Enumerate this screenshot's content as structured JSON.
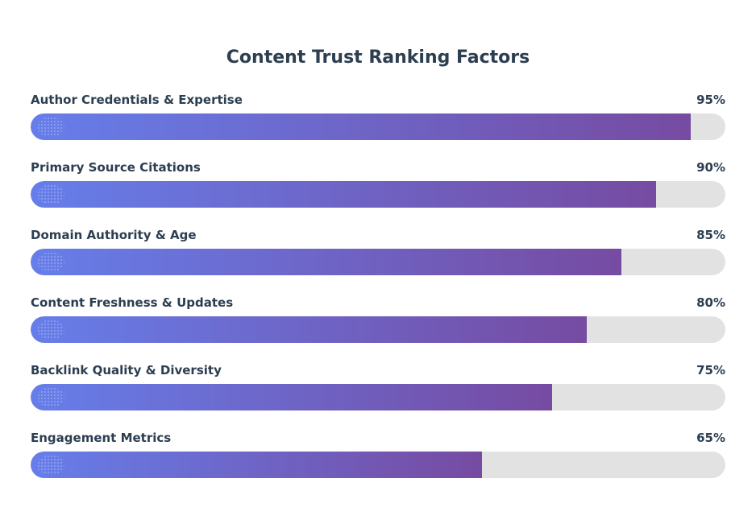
{
  "chart_data": {
    "type": "bar",
    "orientation": "horizontal",
    "title": "Content Trust Ranking Factors",
    "categories": [
      "Author Credentials & Expertise",
      "Primary Source Citations",
      "Domain Authority & Age",
      "Content Freshness & Updates",
      "Backlink Quality & Diversity",
      "Engagement Metrics"
    ],
    "values": [
      95,
      90,
      85,
      80,
      75,
      65
    ],
    "value_labels": [
      "95%",
      "90%",
      "85%",
      "80%",
      "75%",
      "65%"
    ],
    "xlim": [
      0,
      100
    ],
    "grid": false,
    "legend": "none",
    "colors": {
      "fill_start": "#667eea",
      "fill_end": "#764ba2",
      "track": "#e2e2e2",
      "text": "#2c3e50"
    }
  }
}
